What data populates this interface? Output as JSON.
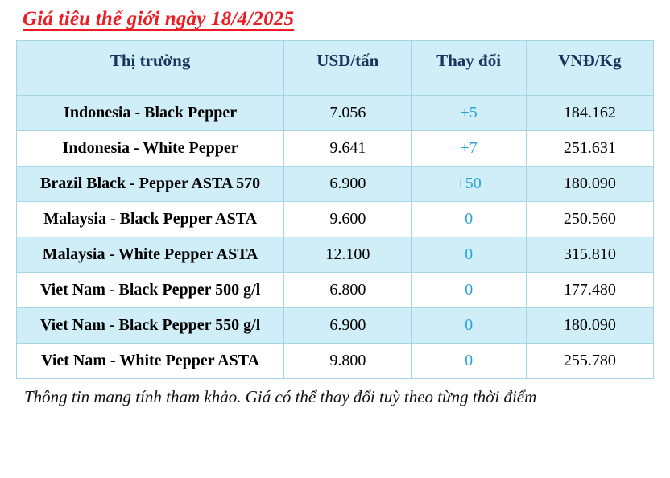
{
  "page": {
    "title": "Giá tiêu thế giới ngày 18/4/2025",
    "footer_note": "Thông tin mang tính tham khảo. Giá có thể thay đổi tuỳ theo từng thời điểm"
  },
  "colors": {
    "title_red": "#ec1c24",
    "header_bg": "#cfeef8",
    "header_text": "#17365d",
    "row_alt_bg": "#cfeef8",
    "row_bg": "#ffffff",
    "change_text_blue": "#29a3dc",
    "grid_border": "#a8d5e5"
  },
  "chart_data": {
    "type": "table",
    "title": "Giá tiêu thế giới ngày 18/4/2025",
    "columns": [
      "Thị trường",
      "USD/tấn",
      "Thay đổi",
      "VNĐ/Kg"
    ],
    "rows": [
      {
        "market": "Indonesia - Black Pepper",
        "usd_per_ton": "7.056",
        "change": "+5",
        "vnd_per_kg": "184.162"
      },
      {
        "market": "Indonesia - White Pepper",
        "usd_per_ton": "9.641",
        "change": "+7",
        "vnd_per_kg": "251.631"
      },
      {
        "market": "Brazil Black - Pepper ASTA 570",
        "usd_per_ton": "6.900",
        "change": "+50",
        "vnd_per_kg": "180.090"
      },
      {
        "market": "Malaysia - Black Pepper ASTA",
        "usd_per_ton": "9.600",
        "change": "0",
        "vnd_per_kg": "250.560"
      },
      {
        "market": "Malaysia - White Pepper ASTA",
        "usd_per_ton": "12.100",
        "change": "0",
        "vnd_per_kg": "315.810"
      },
      {
        "market": "Viet Nam - Black Pepper 500 g/l",
        "usd_per_ton": "6.800",
        "change": "0",
        "vnd_per_kg": "177.480"
      },
      {
        "market": "Viet Nam - Black Pepper 550 g/l",
        "usd_per_ton": "6.900",
        "change": "0",
        "vnd_per_kg": "180.090"
      },
      {
        "market": "Viet Nam - White Pepper ASTA",
        "usd_per_ton": "9.800",
        "change": "0",
        "vnd_per_kg": "255.780"
      }
    ],
    "footnote": "Thông tin mang tính tham khảo. Giá có thể thay đổi tuỳ theo từng thời điểm",
    "layout": {
      "header_position": "top",
      "zebra_striping": true,
      "first_row_shaded": true
    }
  }
}
